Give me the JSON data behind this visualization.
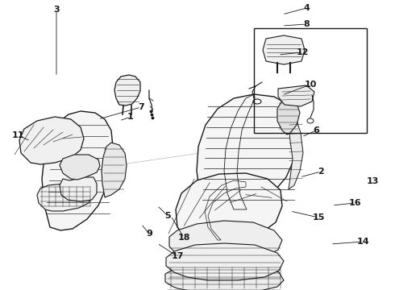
{
  "bg_color": "#ffffff",
  "line_color": "#1a1a1a",
  "fig_width": 4.9,
  "fig_height": 3.6,
  "dpi": 100,
  "font_size": 8,
  "font_size_small": 7
}
